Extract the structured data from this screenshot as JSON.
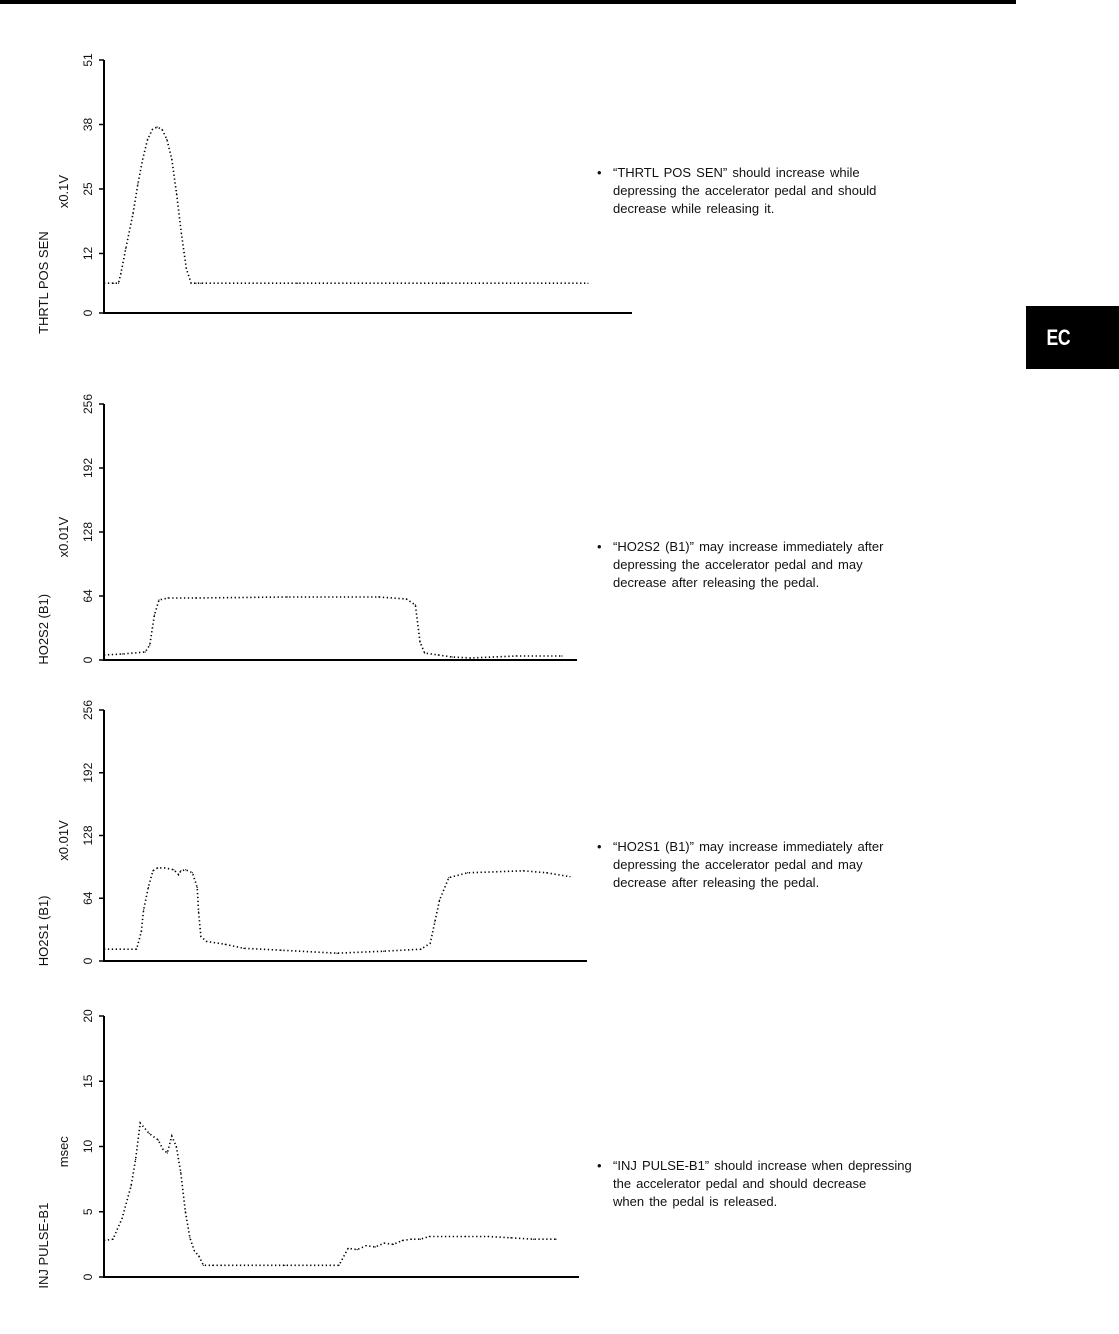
{
  "page": {
    "section_tab": "EC"
  },
  "chart_data": [
    {
      "type": "line",
      "title": "",
      "ylabel": "THRTL POS SEN",
      "unit": "x0.1V",
      "yticks": [
        0,
        12,
        25,
        38,
        51
      ],
      "ylim": [
        0,
        51
      ],
      "x": [
        0,
        2,
        3,
        3.5,
        4.5,
        6,
        7,
        8,
        9,
        10,
        11,
        12,
        13,
        14,
        15,
        16,
        17,
        18,
        19,
        20,
        40,
        70,
        100
      ],
      "values": [
        6,
        6,
        6,
        8,
        13,
        20,
        26,
        31,
        35,
        37,
        37.5,
        37,
        35,
        31,
        24,
        16,
        9,
        6,
        6,
        6,
        6,
        6,
        6
      ],
      "description": "“THRTL POS SEN” should increase while|depressing the accelerator pedal and should|decrease while releasing it."
    },
    {
      "type": "line",
      "title": "",
      "ylabel": "HO2S2 (B1)",
      "unit": "x0.01V",
      "yticks": [
        0,
        64,
        128,
        192,
        256
      ],
      "ylim": [
        0,
        256
      ],
      "x": [
        0,
        4,
        9,
        10,
        11,
        12,
        14,
        20,
        40,
        60,
        66,
        68,
        69,
        70,
        73,
        76,
        80,
        90,
        100
      ],
      "values": [
        5,
        6,
        8,
        15,
        45,
        60,
        62,
        62,
        63,
        63,
        61,
        55,
        18,
        7,
        5,
        3,
        2,
        4,
        4
      ],
      "description": "“HO2S2 (B1)” may increase immediately after|depressing the accelerator pedal and may|decrease after releasing the pedal."
    },
    {
      "type": "line",
      "title": "",
      "ylabel": "HO2S1 (B1)",
      "unit": "x0.01V",
      "yticks": [
        0,
        64,
        128,
        192,
        256
      ],
      "ylim": [
        0,
        256
      ],
      "x": [
        0,
        7,
        8,
        8.5,
        9.5,
        10.5,
        11.5,
        13,
        15,
        16,
        16.5,
        17.5,
        19,
        20,
        20.3,
        20.8,
        22,
        26,
        30,
        38,
        50,
        60,
        68,
        70,
        71,
        72,
        74,
        78,
        90,
        95,
        100
      ],
      "values": [
        12,
        12,
        30,
        52,
        75,
        92,
        95,
        95,
        93,
        88,
        92,
        93,
        90,
        75,
        50,
        25,
        20,
        17,
        13,
        11,
        8,
        10,
        12,
        18,
        40,
        62,
        85,
        90,
        92,
        90,
        86
      ],
      "description": "“HO2S1 (B1)” may increase immediately after|depressing the accelerator pedal and may|decrease after releasing the pedal."
    },
    {
      "type": "line",
      "title": "",
      "ylabel": "INJ PULSE-B1",
      "unit": "msec",
      "yticks": [
        0,
        5,
        10,
        15,
        20
      ],
      "ylim": [
        0,
        20
      ],
      "x": [
        0,
        2,
        4,
        6,
        7,
        8,
        10,
        12,
        13,
        14,
        15,
        16,
        17,
        18,
        19,
        20,
        21,
        22,
        24,
        26,
        40,
        52,
        54,
        56,
        58,
        60,
        62,
        64,
        66,
        68,
        70,
        72,
        80,
        85,
        90,
        95,
        100
      ],
      "values": [
        2.8,
        2.9,
        4.5,
        7,
        9,
        11.8,
        11,
        10.5,
        9.8,
        9.5,
        10.8,
        10,
        8,
        5,
        3,
        2,
        1.6,
        0.9,
        0.9,
        0.9,
        0.9,
        0.9,
        2.2,
        2.1,
        2.4,
        2.3,
        2.6,
        2.5,
        2.8,
        2.9,
        2.9,
        3.1,
        3.1,
        3.1,
        3,
        2.9,
        2.9
      ],
      "description": "“INJ PULSE-B1” should increase when depressing|the accelerator pedal and should decrease|when the pedal is released."
    }
  ]
}
